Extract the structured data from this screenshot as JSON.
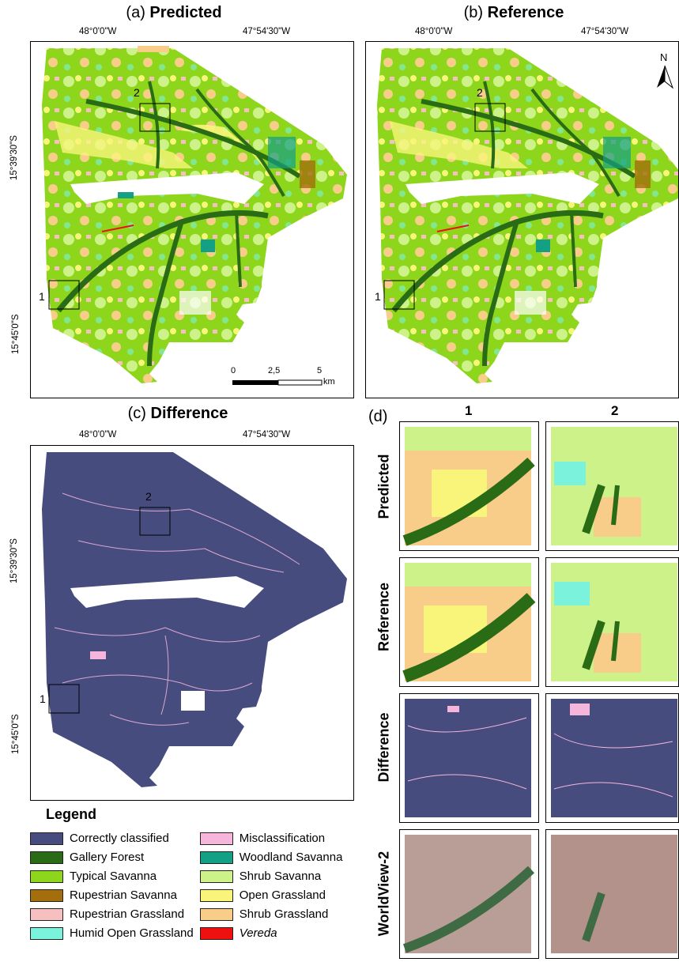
{
  "panels": {
    "a": {
      "prefix": "(a) ",
      "bold": "Predicted"
    },
    "b": {
      "prefix": "(b) ",
      "bold": "Reference"
    },
    "c": {
      "prefix": "(c) ",
      "bold": "Difference"
    },
    "d": {
      "prefix": "(d)"
    }
  },
  "coords": {
    "lon1": "48°0'0\"W",
    "lon2": "47°54'30\"W",
    "lat1": "15°39'30\"S",
    "lat2": "15°45'0\"S"
  },
  "scalebar": {
    "t0": "0",
    "t1": "2,5",
    "t2": "5",
    "unit": "km"
  },
  "north": "N",
  "boxes": {
    "one": "1",
    "two": "2"
  },
  "zoom": {
    "columns": [
      "1",
      "2"
    ],
    "rows": [
      "Predicted",
      "Reference",
      "Difference",
      "WorldView-2"
    ]
  },
  "legend": {
    "title": "Legend",
    "items": [
      {
        "label": "Correctly classified",
        "color": "#464c7e"
      },
      {
        "label": "Misclassification",
        "color": "#f6b6dc"
      },
      {
        "label": "Gallery Forest",
        "color": "#2a6b15"
      },
      {
        "label": "Woodland Savanna",
        "color": "#13a085"
      },
      {
        "label": "Typical Savanna",
        "color": "#8ed61b"
      },
      {
        "label": "Shrub Savanna",
        "color": "#cdf28a"
      },
      {
        "label": "Rupestrian Savanna",
        "color": "#a46e0c"
      },
      {
        "label": "Open Grassland",
        "color": "#f8f57a"
      },
      {
        "label": "Rupestrian Grassland",
        "color": "#f7c0c0"
      },
      {
        "label": "Shrub Grassland",
        "color": "#f8cd8a"
      },
      {
        "label": "Humid Open Grassland",
        "color": "#7bf2dc"
      },
      {
        "label": "Vereda",
        "color": "#ef1010"
      }
    ]
  }
}
